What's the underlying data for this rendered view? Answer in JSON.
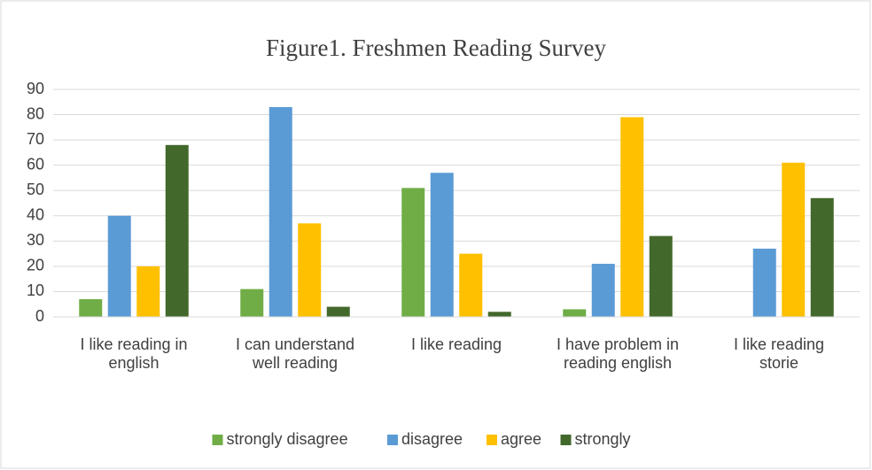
{
  "chart_data": {
    "type": "bar",
    "title": "Figure1. Freshmen Reading Survey",
    "categories": [
      "I like reading in english",
      "I can understand well reading",
      "I like reading",
      "I have problem in reading english",
      "I like reading storie"
    ],
    "series": [
      {
        "name": "strongly disagree",
        "color": "#70ad47",
        "values": [
          7,
          11,
          51,
          3,
          0
        ]
      },
      {
        "name": "disagree",
        "color": "#5b9bd5",
        "values": [
          40,
          83,
          57,
          21,
          27
        ]
      },
      {
        "name": "agree",
        "color": "#ffc000",
        "values": [
          20,
          37,
          25,
          79,
          61
        ]
      },
      {
        "name": "strongly",
        "color": "#43682b",
        "values": [
          68,
          4,
          2,
          32,
          47
        ]
      }
    ],
    "ylim": [
      0,
      90
    ],
    "yticks": [
      0,
      10,
      20,
      30,
      40,
      50,
      60,
      70,
      80,
      90
    ],
    "grid": true,
    "legend": "bottom"
  }
}
